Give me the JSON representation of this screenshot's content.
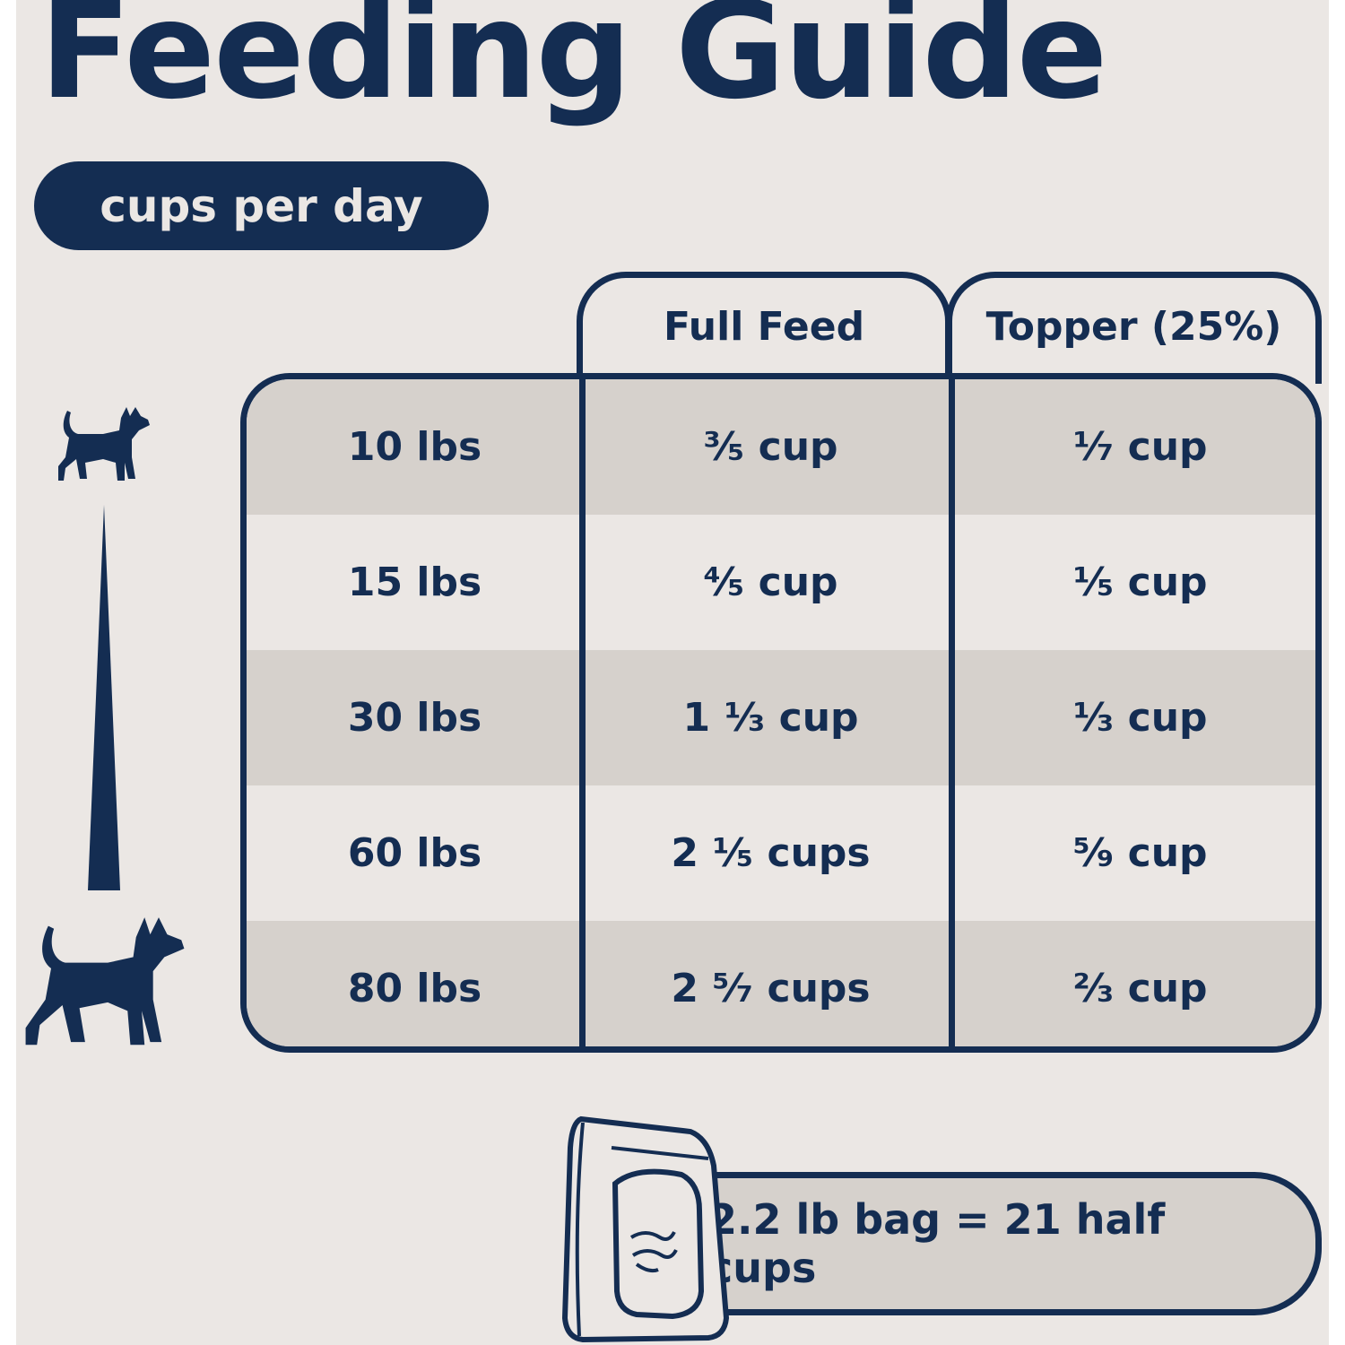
{
  "title": "Feeding Guide",
  "unit_badge": "cups per day",
  "colors": {
    "navy": "#142d52",
    "background": "#ebe7e4",
    "row_shade": "#d6d1cc"
  },
  "table": {
    "headers": [
      "",
      "Full Feed",
      "Topper (25%)"
    ],
    "rows": [
      {
        "weight": "10 lbs",
        "full_feed": "³⁄₅ cup",
        "topper": "¹⁄₇ cup"
      },
      {
        "weight": "15 lbs",
        "full_feed": "⁴⁄₅ cup",
        "topper": "¹⁄₅ cup"
      },
      {
        "weight": "30 lbs",
        "full_feed": "1 ¹⁄₃ cup",
        "topper": "¹⁄₃ cup"
      },
      {
        "weight": "60 lbs",
        "full_feed": "2 ¹⁄₅ cups",
        "topper": "⁵⁄₉ cup"
      },
      {
        "weight": "80 lbs",
        "full_feed": "2 ⁵⁄₇ cups",
        "topper": "²⁄₃ cup"
      }
    ]
  },
  "icons": [
    "small-dog-icon",
    "size-scale-triangle-icon",
    "large-dog-icon",
    "food-bag-icon"
  ],
  "bag_note": "2.2 lb bag = 21 half cups"
}
